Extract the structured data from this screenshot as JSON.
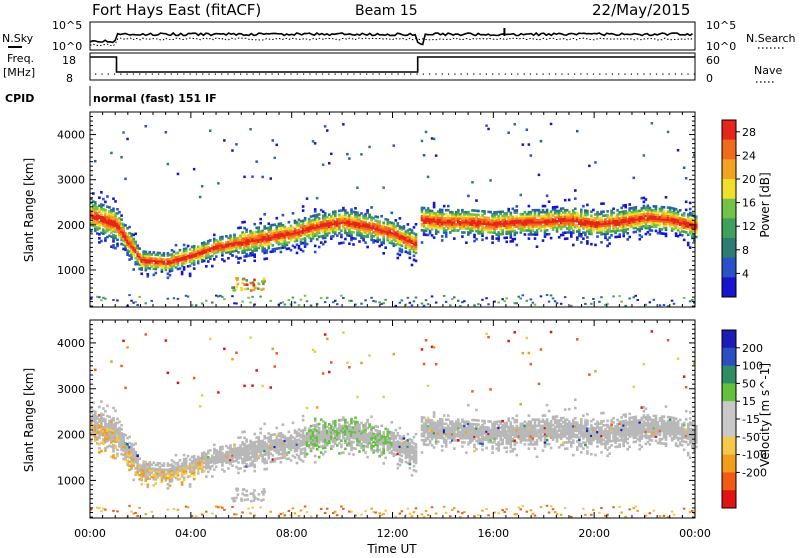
{
  "header": {
    "site": "Fort Hays East (fitACF)",
    "beam": "Beam 15",
    "date": "22/May/2015"
  },
  "top_panels": {
    "nsky_label": "N.Sky",
    "nsky_ticks": [
      "10^5",
      "10^0"
    ],
    "nsearch_label": "N.Search",
    "nsearch_ticks": [
      "10^5",
      "10^0"
    ],
    "freq_label": "Freq.",
    "freq_unit": "[MHz]",
    "freq_ticks": [
      "18",
      "8"
    ],
    "nave_label": "Nave",
    "nave_ticks": [
      "60",
      "0"
    ],
    "cpid_label": "CPID",
    "cpid_value": "normal (fast) 151 IF"
  },
  "colors": {
    "power_scale": [
      "#1515cf",
      "#2a52c8",
      "#2e7b74",
      "#3f9f5b",
      "#72c24a",
      "#f0df2a",
      "#f2a324",
      "#ef6b1c",
      "#e8251a"
    ],
    "velocity_scale": [
      "#e01313",
      "#f05b14",
      "#f39d1d",
      "#f5c84a",
      "#c8c8c8",
      "#c8c8c8",
      "#64c13e",
      "#2f8c63",
      "#2b4fc2",
      "#1b1bb5"
    ],
    "ground_scatter": "#b8b8b8"
  },
  "chart_data": [
    {
      "type": "heatmap",
      "panel": "power",
      "ylabel": "Slant Range [km]",
      "xlabel": "",
      "x_ticks": [
        "00:00",
        "04:00",
        "08:00",
        "12:00",
        "16:00",
        "20:00",
        "00:00"
      ],
      "x_range_hours": [
        0,
        24
      ],
      "y_ticks": [
        1000,
        2000,
        3000,
        4000
      ],
      "y_range_km": [
        180,
        4500
      ],
      "colorbar_label": "Power [dB]",
      "colorbar_ticks": [
        "4",
        "8",
        "12",
        "16",
        "20",
        "24",
        "28"
      ],
      "colorbar_range": [
        0,
        30
      ],
      "data_gap_hours": [
        12.95,
        13.05
      ],
      "echo_band_center_km": [
        [
          0.0,
          2200
        ],
        [
          1.0,
          2000
        ],
        [
          2.0,
          1200
        ],
        [
          3.0,
          1150
        ],
        [
          4.0,
          1300
        ],
        [
          5.0,
          1500
        ],
        [
          6.0,
          1600
        ],
        [
          7.0,
          1700
        ],
        [
          8.0,
          1800
        ],
        [
          9.0,
          1950
        ],
        [
          10.0,
          2050
        ],
        [
          11.0,
          1950
        ],
        [
          12.0,
          1800
        ],
        [
          12.9,
          1550
        ],
        [
          13.1,
          2100
        ],
        [
          14.0,
          2050
        ],
        [
          15.0,
          2050
        ],
        [
          16.0,
          2000
        ],
        [
          17.0,
          2050
        ],
        [
          18.0,
          2050
        ],
        [
          19.0,
          2100
        ],
        [
          20.0,
          2000
        ],
        [
          21.0,
          2050
        ],
        [
          22.0,
          2150
        ],
        [
          23.0,
          2100
        ],
        [
          24.0,
          1950
        ]
      ]
    },
    {
      "type": "heatmap",
      "panel": "velocity",
      "ylabel": "Slant Range [km]",
      "xlabel": "Time UT",
      "x_ticks": [
        "00:00",
        "04:00",
        "08:00",
        "12:00",
        "16:00",
        "20:00",
        "00:00"
      ],
      "x_range_hours": [
        0,
        24
      ],
      "y_ticks": [
        1000,
        2000,
        3000,
        4000
      ],
      "y_range_km": [
        180,
        4500
      ],
      "colorbar_label": "Velocity [m s^-1]",
      "colorbar_ticks": [
        "200",
        "100",
        "50",
        "15",
        "-15",
        "-50",
        "-100",
        "-200"
      ],
      "data_gap_hours": [
        12.95,
        13.05
      ]
    }
  ]
}
